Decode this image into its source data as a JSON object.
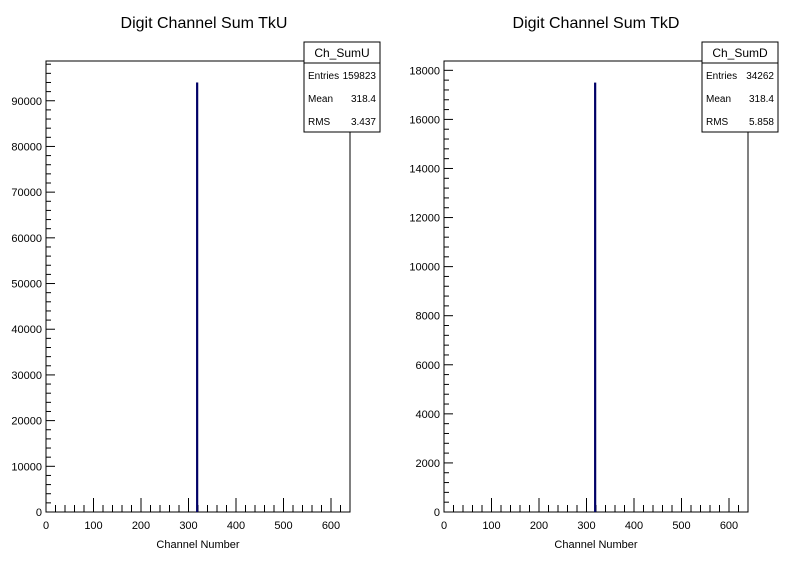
{
  "chart_data": [
    {
      "type": "bar",
      "title": "Digit Channel Sum TkU",
      "xlabel": "Channel Number",
      "ylabel": "",
      "xlim": [
        0,
        640
      ],
      "ylim": [
        0,
        98700
      ],
      "xticks": [
        0,
        100,
        200,
        300,
        400,
        500,
        600
      ],
      "yticks": [
        0,
        10000,
        20000,
        30000,
        40000,
        50000,
        60000,
        70000,
        80000,
        90000
      ],
      "x": [
        318
      ],
      "values": [
        94000
      ],
      "color": "#000066",
      "stats": {
        "name": "Ch_SumU",
        "rows": [
          {
            "label": "Entries",
            "value": "159823"
          },
          {
            "label": "Mean",
            "value": "318.4"
          },
          {
            "label": "RMS",
            "value": "3.437"
          }
        ]
      }
    },
    {
      "type": "bar",
      "title": "Digit Channel Sum TkD",
      "xlabel": "Channel Number",
      "ylabel": "",
      "xlim": [
        0,
        640
      ],
      "ylim": [
        0,
        18380
      ],
      "xticks": [
        0,
        100,
        200,
        300,
        400,
        500,
        600
      ],
      "yticks": [
        0,
        2000,
        4000,
        6000,
        8000,
        10000,
        12000,
        14000,
        16000,
        18000
      ],
      "x": [
        318
      ],
      "values": [
        17500
      ],
      "color": "#000066",
      "stats": {
        "name": "Ch_SumD",
        "rows": [
          {
            "label": "Entries",
            "value": "34262"
          },
          {
            "label": "Mean",
            "value": "318.4"
          },
          {
            "label": "RMS",
            "value": "5.858"
          }
        ]
      }
    }
  ]
}
